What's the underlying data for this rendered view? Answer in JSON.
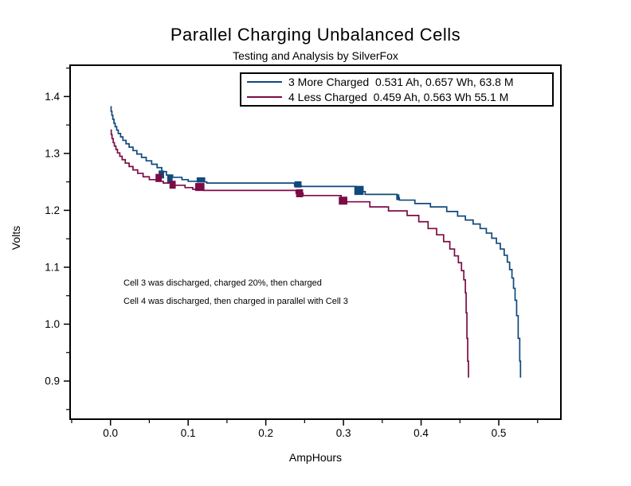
{
  "chart": {
    "title": "Parallel Charging Unbalanced Cells",
    "subtitle": "Testing and Analysis by SilverFox",
    "xlabel": "AmpHours",
    "ylabel": "Volts",
    "annotations": [
      "Cell 3 was discharged, charged 20%, then charged",
      "Cell 4 was discharged, then charged in parallel with Cell 3"
    ]
  },
  "chart_data": {
    "type": "line",
    "step": "after",
    "title": "Parallel Charging Unbalanced Cells",
    "subtitle": "Testing and Analysis by SilverFox",
    "xlabel": "AmpHours",
    "ylabel": "Volts",
    "grid": false,
    "legend_position": "top-right-inside",
    "xlim": [
      -0.052,
      0.58
    ],
    "ylim": [
      0.833,
      1.455
    ],
    "x_ticks": [
      {
        "v": 0.0,
        "label": "0.0"
      },
      {
        "v": 0.1,
        "label": "0.1"
      },
      {
        "v": 0.2,
        "label": "0.2"
      },
      {
        "v": 0.3,
        "label": "0.3"
      },
      {
        "v": 0.4,
        "label": "0.4"
      },
      {
        "v": 0.5,
        "label": "0.5"
      }
    ],
    "x_minor_ticks": [
      -0.05,
      0.05,
      0.15,
      0.25,
      0.35,
      0.45,
      0.55
    ],
    "y_ticks": [
      {
        "v": 0.9,
        "label": "0.9"
      },
      {
        "v": 1.0,
        "label": "1.0"
      },
      {
        "v": 1.1,
        "label": "1.1"
      },
      {
        "v": 1.2,
        "label": "1.2"
      },
      {
        "v": 1.3,
        "label": "1.3"
      },
      {
        "v": 1.4,
        "label": "1.4"
      }
    ],
    "y_minor_ticks": [
      0.85,
      0.95,
      1.05,
      1.15,
      1.25,
      1.35,
      1.45
    ],
    "legend": [
      {
        "label": "3 More Charged  0.531 Ah, 0.657 Wh, 63.8 M",
        "color": "#11497C"
      },
      {
        "label": "4 Less Charged  0.459 Ah, 0.563 Wh 55.1 M",
        "color": "#7C0C45"
      }
    ],
    "series": [
      {
        "name": "3 More Charged",
        "cell": "Cell 3",
        "capacity_ah": 0.531,
        "energy_wh": 0.657,
        "minutes": 63.8,
        "color": "#11497C",
        "points": [
          [
            0.0,
            1.382
          ],
          [
            0.0008,
            1.374
          ],
          [
            0.0018,
            1.367
          ],
          [
            0.003,
            1.36
          ],
          [
            0.0045,
            1.353
          ],
          [
            0.006,
            1.347
          ],
          [
            0.008,
            1.341
          ],
          [
            0.01,
            1.335
          ],
          [
            0.013,
            1.329
          ],
          [
            0.016,
            1.323
          ],
          [
            0.02,
            1.317
          ],
          [
            0.024,
            1.311
          ],
          [
            0.029,
            1.305
          ],
          [
            0.034,
            1.299
          ],
          [
            0.04,
            1.293
          ],
          [
            0.046,
            1.287
          ],
          [
            0.053,
            1.281
          ],
          [
            0.06,
            1.275
          ],
          [
            0.066,
            1.268
          ],
          [
            0.072,
            1.262
          ],
          [
            0.08,
            1.258
          ],
          [
            0.092,
            1.254
          ],
          [
            0.1,
            1.251
          ],
          [
            0.112,
            1.25
          ],
          [
            0.124,
            1.248
          ],
          [
            0.237,
            1.243
          ],
          [
            0.246,
            1.242
          ],
          [
            0.316,
            1.233
          ],
          [
            0.328,
            1.228
          ],
          [
            0.369,
            1.222
          ],
          [
            0.372,
            1.218
          ],
          [
            0.392,
            1.212
          ],
          [
            0.412,
            1.206
          ],
          [
            0.433,
            1.198
          ],
          [
            0.447,
            1.19
          ],
          [
            0.457,
            1.183
          ],
          [
            0.467,
            1.176
          ],
          [
            0.476,
            1.168
          ],
          [
            0.484,
            1.16
          ],
          [
            0.491,
            1.151
          ],
          [
            0.497,
            1.142
          ],
          [
            0.502,
            1.132
          ],
          [
            0.507,
            1.121
          ],
          [
            0.511,
            1.109
          ],
          [
            0.514,
            1.096
          ],
          [
            0.517,
            1.081
          ],
          [
            0.519,
            1.063
          ],
          [
            0.521,
            1.042
          ],
          [
            0.523,
            1.015
          ],
          [
            0.525,
            0.975
          ],
          [
            0.527,
            0.935
          ],
          [
            0.528,
            0.906
          ]
        ],
        "noise_blocks": [
          [
            0.062,
            1.256,
            0.069,
            1.27
          ],
          [
            0.073,
            1.248,
            0.08,
            1.262
          ],
          [
            0.111,
            1.249,
            0.122,
            1.258
          ],
          [
            0.237,
            1.24,
            0.246,
            1.251
          ],
          [
            0.314,
            1.227,
            0.326,
            1.243
          ],
          [
            0.368,
            1.218,
            0.372,
            1.228
          ]
        ]
      },
      {
        "name": "4 Less Charged",
        "cell": "Cell 4",
        "capacity_ah": 0.459,
        "energy_wh": 0.563,
        "minutes": 55.1,
        "color": "#7C0C45",
        "points": [
          [
            0.0,
            1.341
          ],
          [
            0.001,
            1.333
          ],
          [
            0.002,
            1.326
          ],
          [
            0.0035,
            1.319
          ],
          [
            0.005,
            1.313
          ],
          [
            0.007,
            1.307
          ],
          [
            0.009,
            1.301
          ],
          [
            0.012,
            1.295
          ],
          [
            0.015,
            1.289
          ],
          [
            0.019,
            1.283
          ],
          [
            0.024,
            1.277
          ],
          [
            0.029,
            1.271
          ],
          [
            0.035,
            1.265
          ],
          [
            0.042,
            1.259
          ],
          [
            0.05,
            1.254
          ],
          [
            0.059,
            1.251
          ],
          [
            0.068,
            1.248
          ],
          [
            0.08,
            1.244
          ],
          [
            0.096,
            1.24
          ],
          [
            0.106,
            1.237
          ],
          [
            0.12,
            1.235
          ],
          [
            0.239,
            1.23
          ],
          [
            0.248,
            1.226
          ],
          [
            0.297,
            1.215
          ],
          [
            0.334,
            1.206
          ],
          [
            0.358,
            1.199
          ],
          [
            0.382,
            1.191
          ],
          [
            0.397,
            1.18
          ],
          [
            0.409,
            1.168
          ],
          [
            0.42,
            1.157
          ],
          [
            0.429,
            1.145
          ],
          [
            0.437,
            1.132
          ],
          [
            0.443,
            1.12
          ],
          [
            0.448,
            1.108
          ],
          [
            0.452,
            1.094
          ],
          [
            0.455,
            1.078
          ],
          [
            0.457,
            1.055
          ],
          [
            0.458,
            1.02
          ],
          [
            0.459,
            0.975
          ],
          [
            0.46,
            0.935
          ],
          [
            0.461,
            0.906
          ]
        ],
        "noise_blocks": [
          [
            0.058,
            1.25,
            0.066,
            1.264
          ],
          [
            0.076,
            1.238,
            0.084,
            1.252
          ],
          [
            0.109,
            1.234,
            0.121,
            1.248
          ],
          [
            0.239,
            1.223,
            0.248,
            1.237
          ],
          [
            0.294,
            1.21,
            0.305,
            1.224
          ]
        ]
      }
    ]
  }
}
